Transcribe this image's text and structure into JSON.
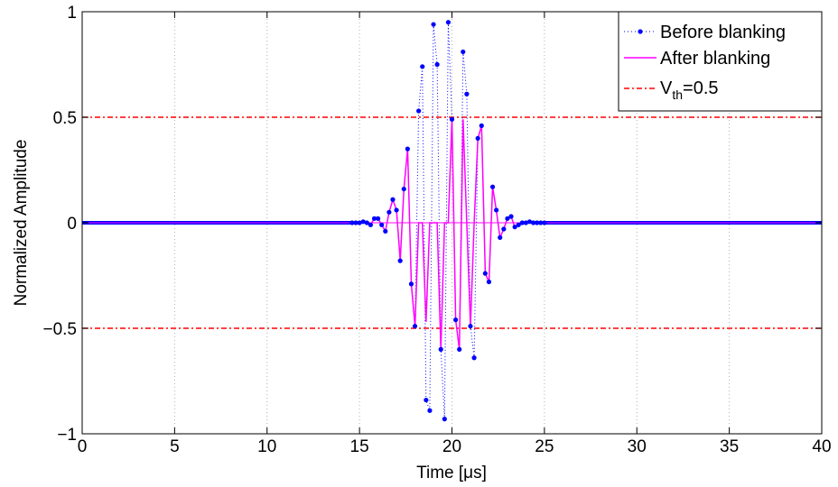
{
  "chart_data": {
    "type": "line",
    "xlabel": "Time [μs]",
    "ylabel": "Normalized Amplitude",
    "xlim": [
      0,
      40
    ],
    "ylim": [
      -1,
      1
    ],
    "xticks": [
      0,
      5,
      10,
      15,
      20,
      25,
      30,
      35,
      40
    ],
    "xtick_labels": [
      "0",
      "5",
      "10",
      "15",
      "20",
      "25",
      "30",
      "35",
      "40"
    ],
    "yticks": [
      -1,
      -0.5,
      0,
      0.5,
      1
    ],
    "ytick_labels": [
      "−1",
      "−0.5",
      "0",
      "0.5",
      "1"
    ],
    "grid": "x-dotted",
    "legend_position": "top-right",
    "threshold": 0.5,
    "legend": {
      "before": "Before blanking",
      "after": "After blanking",
      "vth_prefix": "V",
      "vth_sub": "th",
      "vth_suffix": "=0.5"
    },
    "series": [
      {
        "name": "Before blanking",
        "color": "#0000ff",
        "style": "dotted line with dot markers",
        "x": [
          0,
          14.6,
          14.8,
          15.0,
          15.2,
          15.4,
          15.6,
          15.8,
          16.0,
          16.2,
          16.4,
          16.6,
          16.8,
          17.0,
          17.2,
          17.4,
          17.6,
          17.8,
          18.0,
          18.2,
          18.4,
          18.6,
          18.8,
          19.0,
          19.2,
          19.4,
          19.6,
          19.8,
          20.0,
          20.2,
          20.4,
          20.6,
          20.8,
          21.0,
          21.2,
          21.4,
          21.6,
          21.8,
          22.0,
          22.2,
          22.4,
          22.6,
          22.8,
          23.0,
          23.2,
          23.4,
          23.6,
          23.8,
          24.0,
          24.2,
          24.4,
          24.6,
          24.8,
          25.0,
          40
        ],
        "y": [
          0,
          0,
          0,
          0,
          0.005,
          0.0,
          -0.01,
          0.02,
          0.02,
          -0.01,
          -0.04,
          0.05,
          0.11,
          0.06,
          -0.18,
          0.16,
          0.35,
          -0.29,
          -0.49,
          0.53,
          0.74,
          -0.84,
          -0.89,
          0.94,
          0.75,
          -0.6,
          -0.93,
          0.95,
          0.49,
          -0.46,
          -0.6,
          0.81,
          0.61,
          -0.49,
          -0.64,
          0.4,
          0.46,
          -0.24,
          -0.28,
          0.17,
          0.06,
          -0.07,
          -0.03,
          0.02,
          0.03,
          -0.02,
          -0.01,
          0.0,
          0.0,
          0.005,
          0.0,
          0.0,
          0.0,
          0.0,
          0
        ]
      },
      {
        "name": "After blanking",
        "color": "#ff00ff",
        "style": "solid line",
        "x": [
          0,
          14.6,
          14.8,
          15.0,
          15.2,
          15.4,
          15.6,
          15.8,
          16.0,
          16.2,
          16.4,
          16.6,
          16.8,
          17.0,
          17.2,
          17.4,
          17.6,
          17.8,
          18.0,
          18.2,
          18.4,
          18.6,
          18.8,
          19.0,
          19.2,
          19.4,
          19.6,
          19.8,
          20.0,
          20.2,
          20.4,
          20.6,
          20.8,
          21.0,
          21.2,
          21.4,
          21.6,
          21.8,
          22.0,
          22.2,
          22.4,
          22.6,
          22.8,
          23.0,
          23.2,
          23.4,
          23.6,
          23.8,
          24.0,
          24.2,
          24.4,
          24.6,
          24.8,
          25.0,
          40
        ],
        "y": [
          0,
          0,
          0,
          0,
          0.005,
          0.0,
          -0.01,
          0.02,
          0.02,
          -0.01,
          -0.04,
          0.05,
          0.11,
          0.06,
          -0.18,
          0.16,
          0.35,
          -0.29,
          -0.49,
          0.0,
          0.0,
          -0.47,
          0.0,
          0.0,
          0.0,
          -0.6,
          0.0,
          0.0,
          0.49,
          -0.46,
          -0.6,
          0.49,
          0.0,
          -0.49,
          0.0,
          0.4,
          0.46,
          -0.24,
          -0.28,
          0.17,
          0.06,
          -0.07,
          -0.03,
          0.02,
          0.03,
          -0.02,
          -0.01,
          0.0,
          0.0,
          0.005,
          0.0,
          0.0,
          0.0,
          0.0,
          0
        ]
      },
      {
        "name": "Vth=0.5",
        "color": "#ff0000",
        "style": "dash-dot line",
        "values": [
          0.5,
          -0.5
        ]
      }
    ]
  }
}
